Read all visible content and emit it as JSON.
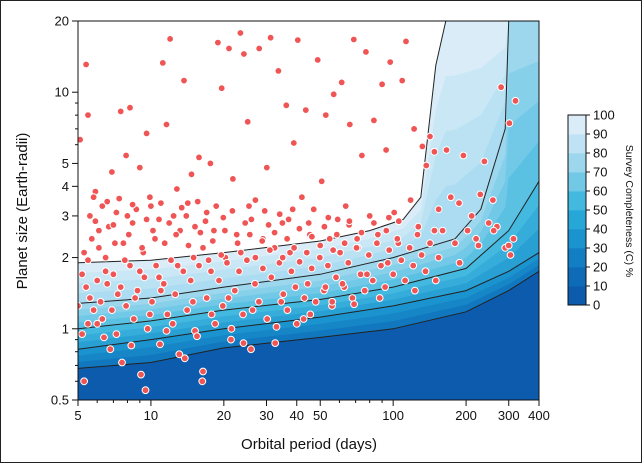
{
  "chart_data": {
    "type": "scatter",
    "xlabel": "Orbital period (days)",
    "ylabel": "Planet size (Earth-radii)",
    "xscale": "log",
    "yscale": "log",
    "xlim": [
      5,
      400
    ],
    "ylim": [
      0.5,
      20
    ],
    "xticks": [
      5,
      10,
      20,
      30,
      40,
      50,
      100,
      200,
      300,
      400
    ],
    "yticks": [
      0.5,
      1,
      2,
      3,
      4,
      5,
      10,
      20
    ],
    "point_color": "#f05555",
    "colorbar": {
      "label": "Survey Completeness (C) %",
      "ticks": [
        0,
        10,
        20,
        30,
        40,
        50,
        60,
        70,
        80,
        90,
        100
      ],
      "colors": [
        "#0d5bac",
        "#0d6bb8",
        "#127ec4",
        "#1a93cf",
        "#27a7d8",
        "#44b9df",
        "#72c9e6",
        "#9dd7ee",
        "#bfe2f4",
        "#d9ecf8",
        "#ffffff"
      ]
    },
    "contours": {
      "levels": [
        10,
        25,
        50,
        75,
        99
      ],
      "boundaries": {
        "10": [
          [
            5,
            0.68
          ],
          [
            10,
            0.72
          ],
          [
            20,
            0.83
          ],
          [
            50,
            0.92
          ],
          [
            100,
            1.0
          ],
          [
            200,
            1.18
          ],
          [
            300,
            1.45
          ],
          [
            400,
            1.75
          ]
        ],
        "25": [
          [
            5,
            0.82
          ],
          [
            10,
            0.9
          ],
          [
            20,
            1.0
          ],
          [
            50,
            1.12
          ],
          [
            100,
            1.25
          ],
          [
            200,
            1.45
          ],
          [
            300,
            1.75
          ],
          [
            400,
            2.1
          ]
        ],
        "50": [
          [
            5,
            1.0
          ],
          [
            10,
            1.08
          ],
          [
            20,
            1.2
          ],
          [
            50,
            1.33
          ],
          [
            100,
            1.5
          ],
          [
            200,
            1.8
          ],
          [
            300,
            2.6
          ],
          [
            400,
            4.2
          ]
        ],
        "75": [
          [
            5,
            1.28
          ],
          [
            10,
            1.35
          ],
          [
            20,
            1.5
          ],
          [
            50,
            1.7
          ],
          [
            100,
            2.0
          ],
          [
            180,
            2.4
          ],
          [
            230,
            3.2
          ],
          [
            290,
            7
          ],
          [
            300,
            20
          ]
        ],
        "99": [
          [
            5,
            1.9
          ],
          [
            10,
            1.95
          ],
          [
            20,
            2.1
          ],
          [
            50,
            2.35
          ],
          [
            80,
            2.6
          ],
          [
            110,
            2.9
          ],
          [
            130,
            3.6
          ],
          [
            140,
            7
          ],
          [
            150,
            13
          ],
          [
            165,
            20
          ]
        ]
      }
    },
    "points": [
      [
        5.1,
        6.3
      ],
      [
        5.4,
        13.1
      ],
      [
        5.5,
        8.0
      ],
      [
        5.6,
        3.0
      ],
      [
        5.7,
        2.4
      ],
      [
        5.9,
        3.8
      ],
      [
        6.1,
        2.2
      ],
      [
        6.3,
        3.3
      ],
      [
        6.5,
        2.0
      ],
      [
        6.7,
        2.7
      ],
      [
        6.9,
        4.6
      ],
      [
        7.2,
        3.1
      ],
      [
        7.5,
        8.3
      ],
      [
        7.7,
        2.3
      ],
      [
        7.9,
        5.4
      ],
      [
        8.2,
        8.6
      ],
      [
        8.4,
        2.8
      ],
      [
        8.7,
        3.2
      ],
      [
        9.0,
        4.8
      ],
      [
        9.3,
        2.1
      ],
      [
        9.6,
        6.7
      ],
      [
        10.0,
        3.3
      ],
      [
        10.4,
        2.4
      ],
      [
        10.8,
        2.9
      ],
      [
        11.2,
        13.3
      ],
      [
        11.6,
        7.3
      ],
      [
        12.0,
        16.8
      ],
      [
        12.4,
        3.0
      ],
      [
        12.8,
        3.9
      ],
      [
        13.2,
        2.6
      ],
      [
        13.7,
        11.2
      ],
      [
        14.2,
        3.4
      ],
      [
        14.7,
        4.5
      ],
      [
        15.2,
        2.7
      ],
      [
        15.8,
        5.3
      ],
      [
        16.4,
        2.2
      ],
      [
        17.0,
        3.1
      ],
      [
        17.6,
        5.0
      ],
      [
        18.2,
        2.6
      ],
      [
        18.9,
        16.2
      ],
      [
        19.6,
        10.4
      ],
      [
        20.3,
        2.0
      ],
      [
        21.0,
        15.3
      ],
      [
        21.8,
        4.3
      ],
      [
        22.6,
        2.5
      ],
      [
        23.4,
        17.8
      ],
      [
        24.2,
        14.5
      ],
      [
        25.1,
        7.5
      ],
      [
        26.0,
        2.9
      ],
      [
        27.0,
        3.5
      ],
      [
        28.0,
        15.3
      ],
      [
        29.0,
        2.4
      ],
      [
        30.1,
        4.8
      ],
      [
        31.2,
        17.0
      ],
      [
        32.4,
        2.2
      ],
      [
        33.6,
        12.3
      ],
      [
        34.9,
        2.8
      ],
      [
        36.2,
        8.8
      ],
      [
        37.5,
        2.1
      ],
      [
        38.9,
        6.1
      ],
      [
        40.4,
        16.6
      ],
      [
        42.0,
        3.6
      ],
      [
        43.6,
        8.4
      ],
      [
        45.3,
        2.5
      ],
      [
        47.0,
        3.2
      ],
      [
        48.8,
        13.7
      ],
      [
        50.7,
        4.2
      ],
      [
        52.7,
        8.0
      ],
      [
        54.7,
        2.4
      ],
      [
        56.8,
        9.8
      ],
      [
        59.0,
        2.9
      ],
      [
        61.3,
        11.0
      ],
      [
        63.7,
        3.3
      ],
      [
        66.2,
        7.3
      ],
      [
        68.8,
        16.7
      ],
      [
        71.5,
        2.2
      ],
      [
        74.3,
        5.4
      ],
      [
        77.2,
        14.8
      ],
      [
        80.2,
        3.0
      ],
      [
        83.3,
        7.6
      ],
      [
        86.5,
        2.5
      ],
      [
        90.0,
        10.8
      ],
      [
        93.5,
        5.7
      ],
      [
        97.2,
        13.4
      ],
      [
        101.0,
        3.1
      ],
      [
        105.0,
        2.3
      ],
      [
        109.0,
        11.2
      ],
      [
        113.0,
        16.4
      ],
      [
        118.0,
        3.5
      ],
      [
        122.0,
        7.0
      ],
      [
        127.0,
        2.7
      ],
      [
        132.0,
        5.9
      ],
      [
        137.0,
        4.9
      ],
      [
        142.0,
        6.5
      ],
      [
        148.0,
        5.6
      ],
      [
        154.0,
        3.2
      ],
      [
        160.0,
        2.6
      ],
      [
        166.0,
        5.7
      ],
      [
        173.0,
        3.6
      ],
      [
        180.0,
        2.3
      ],
      [
        187.0,
        3.4
      ],
      [
        195.0,
        5.4
      ],
      [
        203.0,
        2.6
      ],
      [
        211.0,
        3.0
      ],
      [
        220.0,
        2.4
      ],
      [
        229.0,
        3.7
      ],
      [
        238.0,
        5.1
      ],
      [
        248.0,
        2.8
      ],
      [
        258.0,
        3.5
      ],
      [
        268.0,
        2.7
      ],
      [
        279.0,
        10.5
      ],
      [
        290.0,
        2.2
      ],
      [
        302.0,
        7.4
      ],
      [
        314.0,
        2.4
      ],
      [
        320.0,
        9.2
      ],
      [
        5.2,
        1.7
      ],
      [
        5.4,
        1.5
      ],
      [
        5.6,
        1.35
      ],
      [
        5.8,
        1.2
      ],
      [
        6.0,
        1.05
      ],
      [
        6.2,
        1.3
      ],
      [
        6.4,
        0.92
      ],
      [
        6.6,
        1.55
      ],
      [
        6.8,
        0.82
      ],
      [
        7.0,
        1.7
      ],
      [
        7.3,
        1.4
      ],
      [
        7.6,
        0.72
      ],
      [
        7.9,
        1.25
      ],
      [
        8.2,
        1.85
      ],
      [
        8.5,
        1.1
      ],
      [
        8.8,
        1.45
      ],
      [
        9.1,
        0.64
      ],
      [
        9.4,
        1.65
      ],
      [
        9.7,
        1.0
      ],
      [
        10.1,
        1.3
      ],
      [
        10.5,
        1.85
      ],
      [
        10.9,
        0.86
      ],
      [
        11.3,
        1.55
      ],
      [
        11.7,
        1.15
      ],
      [
        12.1,
        1.95
      ],
      [
        12.6,
        1.4
      ],
      [
        13.1,
        0.78
      ],
      [
        13.6,
        1.75
      ],
      [
        14.1,
        1.2
      ],
      [
        14.6,
        1.6
      ],
      [
        15.2,
        0.98
      ],
      [
        15.8,
        1.85
      ],
      [
        16.4,
        0.66
      ],
      [
        17.0,
        1.35
      ],
      [
        17.7,
        1.75
      ],
      [
        18.4,
        1.05
      ],
      [
        19.1,
        1.6
      ],
      [
        19.8,
        1.25
      ],
      [
        20.6,
        1.9
      ],
      [
        21.4,
        0.9
      ],
      [
        22.2,
        1.45
      ],
      [
        23.1,
        1.75
      ],
      [
        24.0,
        1.15
      ],
      [
        24.9,
        1.95
      ],
      [
        25.9,
        0.82
      ],
      [
        26.9,
        1.55
      ],
      [
        27.9,
        1.3
      ],
      [
        29.0,
        1.8
      ],
      [
        30.2,
        1.1
      ],
      [
        31.4,
        1.65
      ],
      [
        32.6,
        0.87
      ],
      [
        33.9,
        1.9
      ],
      [
        35.2,
        1.4
      ],
      [
        36.6,
        1.2
      ],
      [
        38.0,
        1.75
      ],
      [
        39.5,
        1.5
      ],
      [
        41.1,
        1.92
      ],
      [
        42.7,
        1.1
      ],
      [
        44.4,
        1.55
      ],
      [
        46.1,
        1.8
      ],
      [
        47.9,
        1.3
      ],
      [
        49.8,
        2.0
      ],
      [
        51.8,
        1.45
      ],
      [
        53.8,
        1.85
      ],
      [
        55.9,
        1.25
      ],
      [
        58.1,
        1.65
      ],
      [
        60.4,
        2.1
      ],
      [
        62.8,
        1.5
      ],
      [
        65.3,
        1.9
      ],
      [
        67.9,
        1.35
      ],
      [
        70.6,
        2.2
      ],
      [
        73.4,
        1.7
      ],
      [
        76.3,
        1.45
      ],
      [
        79.3,
        2.05
      ],
      [
        82.4,
        1.6
      ],
      [
        85.7,
        2.3
      ],
      [
        89.1,
        1.85
      ],
      [
        92.6,
        1.5
      ],
      [
        96.3,
        2.15
      ],
      [
        100.0,
        1.7
      ],
      [
        104.0,
        2.4
      ],
      [
        108.0,
        1.95
      ],
      [
        112.0,
        1.6
      ],
      [
        117.0,
        2.2
      ],
      [
        121.0,
        1.85
      ],
      [
        126.0,
        2.5
      ],
      [
        131.0,
        2.05
      ],
      [
        136.0,
        1.75
      ],
      [
        142.0,
        2.3
      ],
      [
        148.0,
        2.6
      ],
      [
        154.0,
        2.0
      ],
      [
        5.3,
        2.1
      ],
      [
        6.1,
        2.6
      ],
      [
        7.1,
        2.3
      ],
      [
        8.1,
        2.5
      ],
      [
        9.2,
        2.2
      ],
      [
        10.2,
        2.6
      ],
      [
        11.4,
        2.3
      ],
      [
        12.7,
        2.5
      ],
      [
        14.3,
        2.25
      ],
      [
        16.0,
        2.55
      ],
      [
        18.0,
        2.35
      ],
      [
        20.2,
        2.6
      ],
      [
        22.8,
        2.3
      ],
      [
        25.6,
        2.5
      ],
      [
        28.8,
        2.35
      ],
      [
        32.4,
        2.55
      ],
      [
        36.5,
        2.4
      ],
      [
        41.0,
        2.65
      ],
      [
        46.2,
        2.45
      ],
      [
        52.0,
        2.7
      ],
      [
        58.5,
        2.5
      ],
      [
        65.8,
        2.75
      ],
      [
        74.0,
        2.55
      ],
      [
        83.3,
        2.8
      ],
      [
        93.7,
        2.6
      ],
      [
        105.5,
        2.85
      ],
      [
        5.0,
        1.25
      ],
      [
        5.2,
        0.95
      ],
      [
        5.3,
        0.6
      ],
      [
        5.5,
        1.05
      ],
      [
        6.3,
        1.1
      ],
      [
        7.2,
        0.95
      ],
      [
        8.3,
        0.85
      ],
      [
        9.5,
        0.55
      ],
      [
        11.6,
        0.98
      ],
      [
        13.8,
        0.75
      ],
      [
        15.5,
        0.93
      ],
      [
        16.3,
        0.6
      ],
      [
        21.5,
        1.0
      ],
      [
        24.1,
        0.87
      ],
      [
        33.0,
        1.02
      ],
      [
        40.0,
        1.05
      ],
      [
        45.5,
        1.15
      ],
      [
        56.0,
        1.3
      ],
      [
        69.0,
        1.27
      ],
      [
        88.0,
        1.35
      ],
      [
        123.0,
        1.45
      ],
      [
        150.0,
        1.6
      ],
      [
        188.0,
        1.9
      ],
      [
        225.0,
        2.25
      ],
      [
        260.0,
        2.6
      ],
      [
        305.0,
        2.05
      ],
      [
        300.0,
        2.25
      ],
      [
        6.5,
        1.75
      ],
      [
        7.8,
        1.95
      ],
      [
        9.0,
        1.75
      ],
      [
        10.8,
        1.65
      ],
      [
        12.9,
        1.85
      ],
      [
        15.0,
        2.0
      ],
      [
        17.3,
        1.95
      ],
      [
        19.5,
        2.05
      ],
      [
        23.5,
        2.1
      ],
      [
        27.0,
        2.0
      ],
      [
        31.0,
        2.15
      ],
      [
        35.0,
        2.0
      ],
      [
        39.0,
        2.2
      ],
      [
        44.0,
        2.1
      ],
      [
        50.0,
        2.25
      ],
      [
        56.5,
        2.15
      ],
      [
        63.0,
        2.3
      ],
      [
        71.0,
        2.4
      ],
      [
        5.8,
        3.6
      ],
      [
        6.6,
        3.45
      ],
      [
        7.4,
        3.55
      ],
      [
        8.4,
        3.35
      ],
      [
        9.9,
        3.6
      ],
      [
        11.0,
        3.4
      ],
      [
        13.4,
        3.25
      ],
      [
        15.6,
        3.45
      ],
      [
        18.6,
        3.3
      ],
      [
        21.7,
        3.15
      ],
      [
        25.4,
        3.3
      ],
      [
        29.5,
        3.15
      ],
      [
        34.0,
        3.05
      ],
      [
        38.5,
        3.2
      ],
      [
        5.9,
        2.85
      ],
      [
        7.0,
        2.75
      ],
      [
        8.0,
        3.0
      ],
      [
        9.6,
        2.9
      ],
      [
        11.9,
        2.8
      ],
      [
        14.0,
        3.0
      ],
      [
        16.8,
        2.85
      ],
      [
        19.9,
        2.95
      ],
      [
        24.5,
        2.8
      ],
      [
        30.6,
        2.75
      ],
      [
        37.0,
        2.9
      ],
      [
        44.8,
        2.8
      ],
      [
        54.0,
        2.95
      ],
      [
        66.0,
        2.85
      ],
      [
        80.0,
        3.0
      ],
      [
        96.0,
        2.95
      ],
      [
        5.5,
        1.95
      ],
      [
        6.0,
        1.6
      ],
      [
        6.9,
        1.2
      ],
      [
        7.5,
        1.5
      ],
      [
        8.6,
        1.35
      ],
      [
        9.9,
        1.15
      ],
      [
        11.0,
        1.45
      ],
      [
        12.3,
        1.05
      ],
      [
        14.9,
        1.3
      ],
      [
        17.8,
        1.15
      ],
      [
        20.9,
        1.35
      ],
      [
        26.3,
        1.2
      ],
      [
        34.5,
        1.3
      ],
      [
        43.0,
        1.35
      ],
      [
        52.5,
        1.5
      ],
      [
        61.8,
        1.55
      ],
      [
        78.0,
        1.7
      ],
      [
        95.0,
        1.9
      ]
    ]
  }
}
